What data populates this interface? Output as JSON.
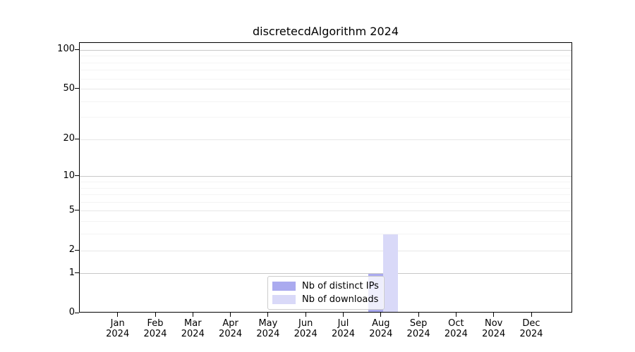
{
  "chart_data": {
    "type": "bar",
    "title": "discretecdAlgorithm 2024",
    "categories": [
      "Jan\n2024",
      "Feb\n2024",
      "Mar\n2024",
      "Apr\n2024",
      "May\n2024",
      "Jun\n2024",
      "Jul\n2024",
      "Aug\n2024",
      "Sep\n2024",
      "Oct\n2024",
      "Nov\n2024",
      "Dec\n2024"
    ],
    "series": [
      {
        "name": "Nb of distinct IPs",
        "color": "#aaaaef",
        "values": [
          0,
          0,
          0,
          0,
          0,
          0,
          0,
          1,
          0,
          0,
          0,
          0
        ]
      },
      {
        "name": "Nb of downloads",
        "color": "#d9d9f8",
        "values": [
          0,
          0,
          0,
          0,
          0,
          0,
          0,
          3,
          0,
          0,
          0,
          0
        ]
      }
    ],
    "yticks": [
      0,
      1,
      2,
      5,
      10,
      20,
      50,
      100
    ],
    "ylim": [
      0,
      113.6
    ],
    "yscale": "log1p",
    "xlabel": "",
    "ylabel": "",
    "grid": {
      "decade_lines": [
        1,
        10,
        100
      ],
      "major_lines": [
        2,
        5,
        20,
        50
      ],
      "minor_lines": [
        3,
        4,
        6,
        7,
        8,
        9,
        30,
        40,
        60,
        70,
        80,
        90
      ]
    },
    "legend": {
      "position": "lower center",
      "entries": [
        "Nb of distinct IPs",
        "Nb of downloads"
      ]
    }
  },
  "colors": {
    "bar_distinct_ips": "#aaaaef",
    "bar_downloads": "#d9d9f8",
    "axis": "#000000",
    "grid_decade": "#c8c8c8",
    "grid_major": "#e7e7e7",
    "grid_minor": "#f4f4f4",
    "legend_border": "#cccccc",
    "text": "#000000"
  }
}
